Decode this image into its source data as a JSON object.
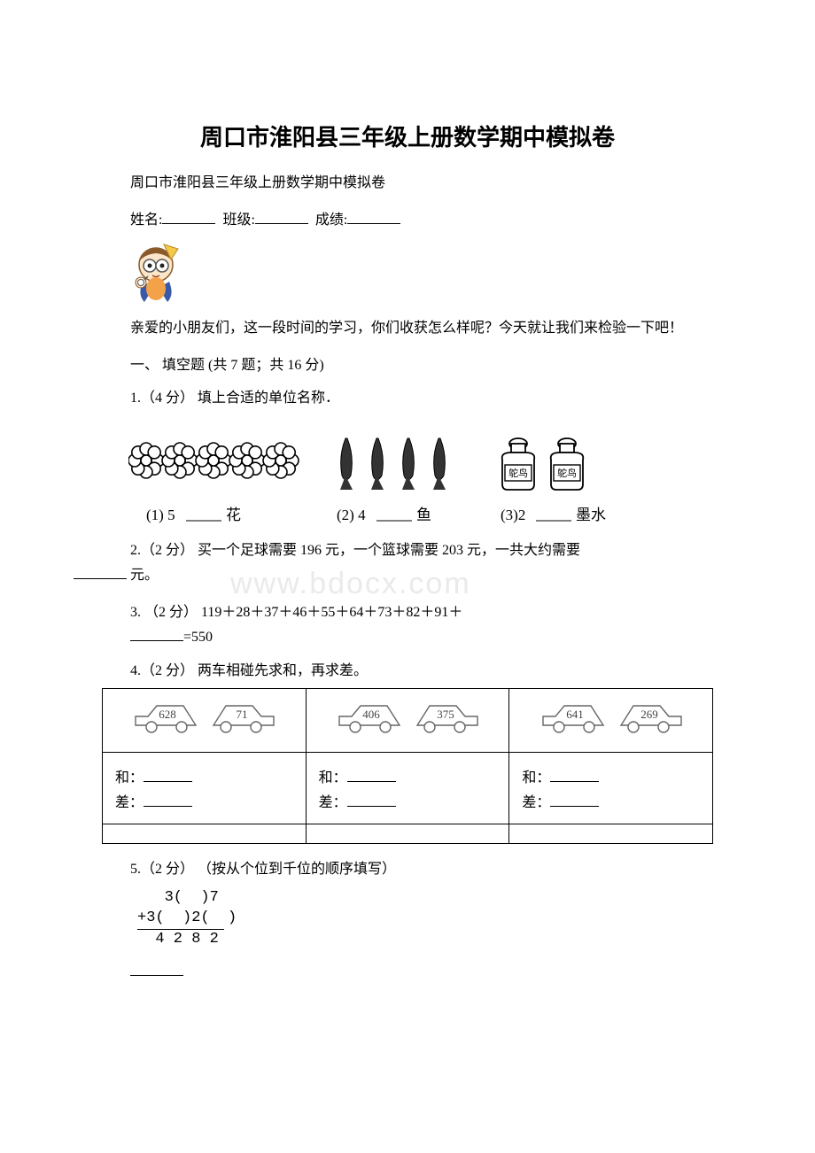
{
  "title": "周口市淮阳县三年级上册数学期中模拟卷",
  "subtitle": "周口市淮阳县三年级上册数学期中模拟卷",
  "info": {
    "name_label": "姓名:",
    "class_label": "班级:",
    "score_label": "成绩:"
  },
  "greeting": "亲爱的小朋友们，这一段时间的学习，你们收获怎么样呢？今天就让我们来检验一下吧！",
  "section1": {
    "header": "一、 填空题 (共 7 题；共 16 分)",
    "q1": {
      "prompt": "1.（4 分） 填上合适的单位名称．",
      "item1": "(1) 5",
      "item1_suffix": "花",
      "item2": "(2) 4",
      "item2_suffix": "鱼",
      "item3": "(3)2",
      "item3_suffix": "墨水",
      "flower_count": 5,
      "fish_count": 4,
      "bottle_count": 2,
      "bottle_label": "鸵鸟"
    },
    "q2": {
      "text_a": "2.（2 分） 买一个足球需要 196 元，一个篮球需要 203 元，一共大约需要",
      "text_b": "元。"
    },
    "q3": {
      "text": "3. （2 分） 119＋28＋37＋46＋55＋64＋73＋82＋91＋",
      "result": "=550"
    },
    "q4": {
      "prompt": "4.（2 分） 两车相碰先求和，再求差。",
      "pairs": [
        {
          "a": "628",
          "b": "71"
        },
        {
          "a": "406",
          "b": "375"
        },
        {
          "a": "641",
          "b": "269"
        }
      ],
      "sum_label": "和：",
      "diff_label": "差："
    },
    "q5": {
      "prompt": "5.（2 分） （按从个位到千位的顺序填写）",
      "row1": "   3(  )7",
      "row2": "+3(  )2(  )",
      "row3": "  4 2 8 2"
    }
  },
  "watermark": "www.bdocx.com",
  "colors": {
    "text": "#000000",
    "background": "#ffffff",
    "watermark": "#eaeaea",
    "car_outline": "#666666",
    "flower_outline": "#000000",
    "mascot_orange": "#f4a24a",
    "mascot_hair": "#8a5a2a",
    "mascot_blue": "#3a5aa8"
  }
}
